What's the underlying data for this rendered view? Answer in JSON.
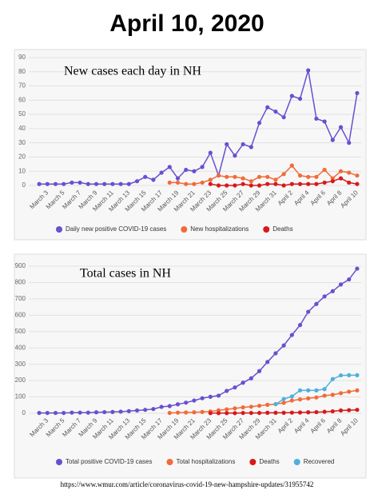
{
  "title": "April 10, 2020",
  "chart_data": [
    {
      "type": "line",
      "title": "New cases each day in NH",
      "categories": [
        null,
        "March 3",
        null,
        "March 5",
        null,
        "March 7",
        null,
        "March 9",
        null,
        "March 11",
        null,
        "March 13",
        null,
        "March 15",
        null,
        "March 17",
        null,
        "March 19",
        null,
        "March 21",
        null,
        "March 23",
        null,
        "March 25",
        null,
        "March 27",
        null,
        "March 29",
        null,
        "March 31",
        null,
        "April 2",
        null,
        "April 4",
        null,
        "April 6",
        null,
        "April 8",
        null,
        "April 10"
      ],
      "series": [
        {
          "name": "Daily new positive COVID-19 cases",
          "color": "#6a4fd0",
          "values": [
            1,
            1,
            1,
            1,
            2,
            2,
            1,
            1,
            1,
            1,
            1,
            1,
            3,
            6,
            4,
            9,
            13,
            5,
            11,
            10,
            13,
            23,
            7,
            29,
            21,
            29,
            27,
            44,
            55,
            52,
            48,
            63,
            61,
            81,
            47,
            45,
            32,
            41,
            30,
            65
          ]
        },
        {
          "name": "New hospitalizations",
          "color": "#f26b38",
          "values": [
            null,
            null,
            null,
            null,
            null,
            null,
            null,
            null,
            null,
            null,
            null,
            null,
            null,
            null,
            null,
            null,
            2,
            2,
            1,
            1,
            2,
            4,
            7,
            6,
            6,
            5,
            3,
            6,
            6,
            4,
            8,
            14,
            7,
            6,
            6,
            11,
            5,
            10,
            9,
            7
          ]
        },
        {
          "name": "Deaths",
          "color": "#d7191c",
          "values": [
            null,
            null,
            null,
            null,
            null,
            null,
            null,
            null,
            null,
            null,
            null,
            null,
            null,
            null,
            null,
            null,
            null,
            null,
            null,
            null,
            null,
            1,
            0,
            0,
            0,
            1,
            0,
            0,
            1,
            1,
            0,
            1,
            1,
            1,
            1,
            2,
            3,
            5,
            2,
            1
          ]
        }
      ],
      "ylim": [
        0,
        90
      ],
      "yticks": [
        0,
        10,
        20,
        30,
        40,
        50,
        60,
        70,
        80,
        90
      ],
      "grid": true
    },
    {
      "type": "line",
      "title": "Total cases in NH",
      "categories": [
        null,
        "March 3",
        null,
        "March 5",
        null,
        "March 7",
        null,
        "March 9",
        null,
        "March 11",
        null,
        "March 13",
        null,
        "March 15",
        null,
        "March 17",
        null,
        "March 19",
        null,
        "March 21",
        null,
        "March 23",
        null,
        "March 25",
        null,
        "March 27",
        null,
        "March 29",
        null,
        "March 31",
        null,
        "April 2",
        null,
        "April 4",
        null,
        "April 6",
        null,
        "April 8",
        null,
        "April 10"
      ],
      "series": [
        {
          "name": "Total positive COVID-19 cases",
          "color": "#6a4fd0",
          "values": [
            2,
            2,
            2,
            2,
            4,
            4,
            4,
            6,
            7,
            8,
            10,
            13,
            17,
            21,
            26,
            39,
            44,
            55,
            65,
            78,
            92,
            101,
            108,
            137,
            158,
            187,
            214,
            258,
            314,
            367,
            415,
            479,
            540,
            621,
            669,
            715,
            747,
            788,
            819,
            885
          ]
        },
        {
          "name": "Total hospitalizations",
          "color": "#f26b38",
          "values": [
            null,
            null,
            null,
            null,
            null,
            null,
            null,
            null,
            null,
            null,
            null,
            null,
            null,
            null,
            null,
            null,
            2,
            4,
            5,
            6,
            8,
            11,
            18,
            24,
            30,
            36,
            40,
            46,
            52,
            56,
            64,
            78,
            85,
            91,
            97,
            108,
            113,
            123,
            132,
            140
          ]
        },
        {
          "name": "Deaths",
          "color": "#d7191c",
          "values": [
            null,
            null,
            null,
            null,
            null,
            null,
            null,
            null,
            null,
            null,
            null,
            null,
            null,
            null,
            null,
            null,
            null,
            null,
            null,
            null,
            null,
            1,
            1,
            1,
            1,
            2,
            2,
            2,
            3,
            3,
            3,
            4,
            5,
            6,
            7,
            9,
            12,
            17,
            19,
            21
          ]
        },
        {
          "name": "Recovered",
          "color": "#4fb0dd",
          "values": [
            null,
            null,
            null,
            null,
            null,
            null,
            null,
            null,
            null,
            null,
            null,
            null,
            null,
            null,
            null,
            null,
            null,
            null,
            null,
            null,
            null,
            null,
            null,
            null,
            null,
            null,
            null,
            null,
            null,
            56,
            87,
            103,
            140,
            140,
            140,
            148,
            209,
            232,
            233,
            233
          ]
        }
      ],
      "ylim": [
        0,
        900
      ],
      "yticks": [
        0,
        100,
        200,
        300,
        400,
        500,
        600,
        700,
        800,
        900
      ],
      "grid": true
    }
  ],
  "source": "https://www.wmur.com/article/coronavirus-covid-19-new-hampshire-updates/31955742"
}
